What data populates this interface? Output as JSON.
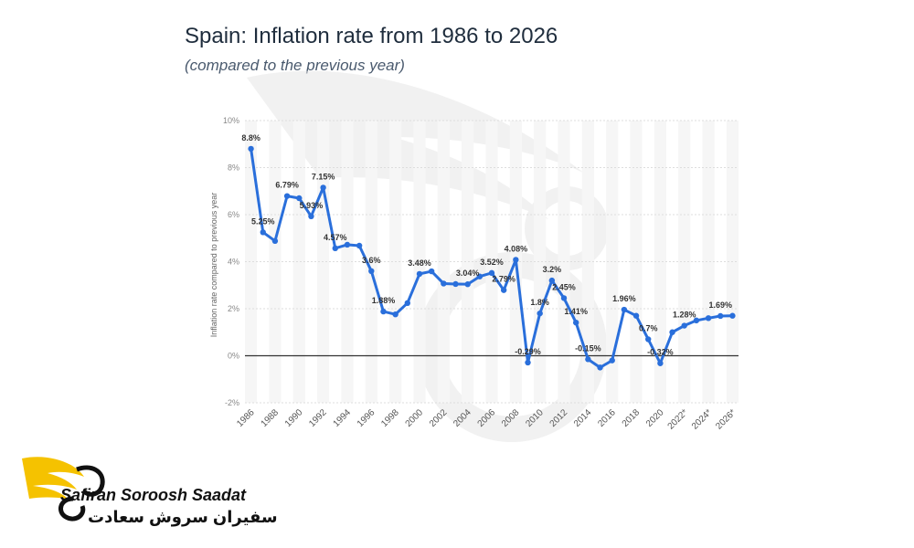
{
  "chart_data": {
    "type": "line",
    "title": "Spain: Inflation rate from 1986 to 2026",
    "subtitle": "(compared to the previous year)",
    "ylabel": "Inflation rate compared to previous year",
    "xlabel": "",
    "ylim": [
      -2,
      10
    ],
    "yticks": [
      {
        "value": 10,
        "label": "10%"
      },
      {
        "value": 8,
        "label": "8%"
      },
      {
        "value": 6,
        "label": "6%"
      },
      {
        "value": 4,
        "label": "4%"
      },
      {
        "value": 2,
        "label": "2%"
      },
      {
        "value": 0,
        "label": "0%"
      },
      {
        "value": -2,
        "label": "-2%"
      }
    ],
    "xtick_labels": [
      "1986",
      "1988",
      "1990",
      "1992",
      "1994",
      "1996",
      "1998",
      "2000",
      "2002",
      "2004",
      "2006",
      "2008",
      "2010",
      "2012",
      "2014",
      "2016",
      "2018",
      "2020",
      "2022*",
      "2024*",
      "2026*"
    ],
    "series": [
      {
        "name": "Inflation rate",
        "color": "#2a6fdb",
        "x": [
          1986,
          1987,
          1988,
          1989,
          1990,
          1991,
          1992,
          1993,
          1994,
          1995,
          1996,
          1997,
          1998,
          1999,
          2000,
          2001,
          2002,
          2003,
          2004,
          2005,
          2006,
          2007,
          2008,
          2009,
          2010,
          2011,
          2012,
          2013,
          2014,
          2015,
          2016,
          2017,
          2018,
          2019,
          2020,
          2021,
          2022,
          2023,
          2024,
          2025,
          2026
        ],
        "values": [
          8.8,
          5.25,
          4.88,
          6.79,
          6.7,
          5.93,
          7.15,
          4.57,
          4.72,
          4.68,
          3.6,
          1.88,
          1.76,
          2.24,
          3.48,
          3.59,
          3.07,
          3.05,
          3.04,
          3.37,
          3.52,
          2.79,
          4.08,
          -0.29,
          1.8,
          3.2,
          2.45,
          1.41,
          -0.15,
          -0.5,
          -0.2,
          1.96,
          1.7,
          0.7,
          -0.32,
          1.0,
          1.28,
          1.5,
          1.6,
          1.69,
          1.7
        ]
      }
    ],
    "data_labels": [
      {
        "x": 1986,
        "value": 8.8,
        "text": "8.8%"
      },
      {
        "x": 1987,
        "value": 5.25,
        "text": "5.25%"
      },
      {
        "x": 1989,
        "value": 6.79,
        "text": "6.79%"
      },
      {
        "x": 1991,
        "value": 5.93,
        "text": "5.93%"
      },
      {
        "x": 1992,
        "value": 7.15,
        "text": "7.15%"
      },
      {
        "x": 1993,
        "value": 4.57,
        "text": "4.57%"
      },
      {
        "x": 1996,
        "value": 3.6,
        "text": "3.6%"
      },
      {
        "x": 1997,
        "value": 1.88,
        "text": "1.88%"
      },
      {
        "x": 2000,
        "value": 3.48,
        "text": "3.48%"
      },
      {
        "x": 2004,
        "value": 3.04,
        "text": "3.04%"
      },
      {
        "x": 2006,
        "value": 3.52,
        "text": "3.52%"
      },
      {
        "x": 2007,
        "value": 2.79,
        "text": "2.79%"
      },
      {
        "x": 2008,
        "value": 4.08,
        "text": "4.08%"
      },
      {
        "x": 2009,
        "value": -0.29,
        "text": "-0.29%"
      },
      {
        "x": 2010,
        "value": 1.8,
        "text": "1.8%"
      },
      {
        "x": 2011,
        "value": 3.2,
        "text": "3.2%"
      },
      {
        "x": 2012,
        "value": 2.45,
        "text": "2.45%"
      },
      {
        "x": 2013,
        "value": 1.41,
        "text": "1.41%"
      },
      {
        "x": 2014,
        "value": -0.15,
        "text": "-0.15%"
      },
      {
        "x": 2017,
        "value": 1.96,
        "text": "1.96%"
      },
      {
        "x": 2019,
        "value": 0.7,
        "text": "0.7%"
      },
      {
        "x": 2020,
        "value": -0.32,
        "text": "-0.32%"
      },
      {
        "x": 2022,
        "value": 1.28,
        "text": "1.28%"
      },
      {
        "x": 2025,
        "value": 1.69,
        "text": "1.69%"
      }
    ],
    "grid": true
  },
  "logo": {
    "text_en": "Safiran Soroosh Saadat",
    "text_fa": "سفیران سروش سعادت",
    "color": "#f5c200"
  }
}
